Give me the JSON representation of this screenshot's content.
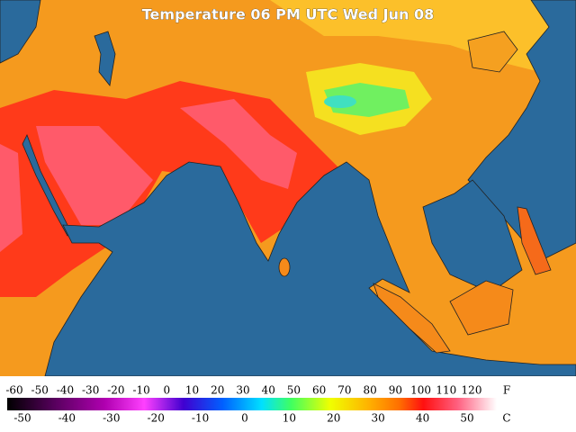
{
  "title": "Temperature 06 PM UTC Wed Jun 08",
  "legend": {
    "fahrenheit_labels": [
      -60,
      -50,
      -40,
      -30,
      -20,
      -10,
      0,
      10,
      20,
      30,
      40,
      50,
      60,
      70,
      80,
      90,
      100,
      110,
      120
    ],
    "fahrenheit_unit": "F",
    "celsius_labels": [
      -50,
      -40,
      -30,
      -20,
      -10,
      0,
      10,
      20,
      30,
      40,
      50
    ],
    "celsius_unit": "C"
  }
}
